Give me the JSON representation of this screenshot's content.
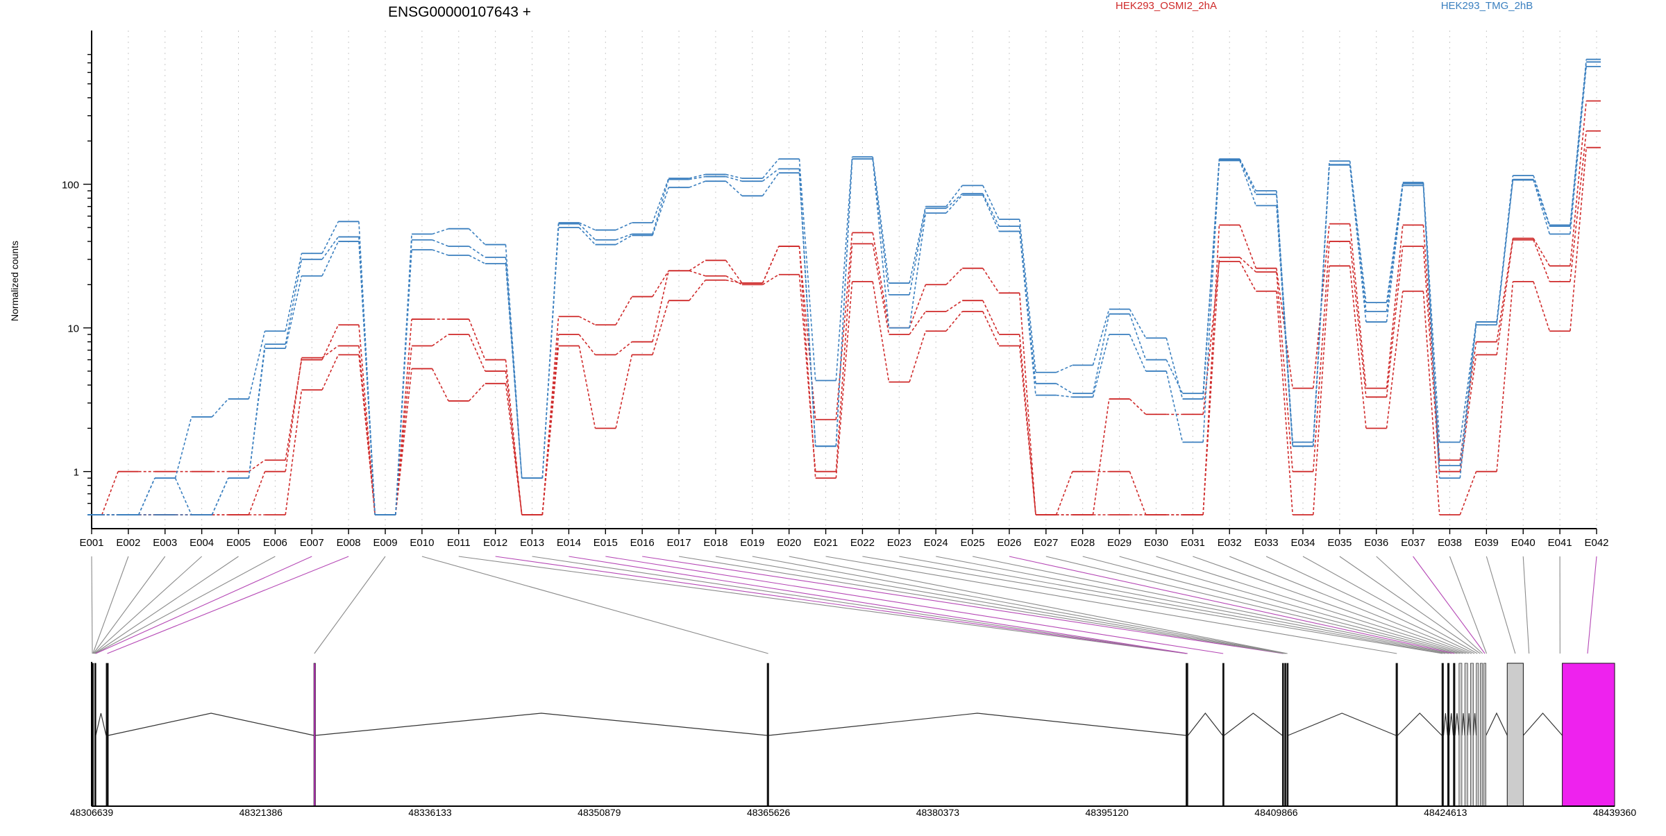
{
  "chart_data": {
    "type": "line",
    "title": "ENSG00000107643 +",
    "ylabel": "Normalized counts",
    "xlabel": "",
    "y_scale": "log",
    "ylim": [
      0.5,
      880
    ],
    "y_ticks": [
      {
        "value": 1,
        "label": "1"
      },
      {
        "value": 10,
        "label": "10"
      },
      {
        "value": 100,
        "label": "100"
      }
    ],
    "grid": "vertical dotted",
    "legend": [
      {
        "name": "HEK293_OSMI2_2hA",
        "color": "#cf2a2a"
      },
      {
        "name": "HEK293_TMG_2hB",
        "color": "#3a7fbf"
      }
    ],
    "categories": [
      "E001",
      "E002",
      "E003",
      "E004",
      "E005",
      "E006",
      "E007",
      "E008",
      "E009",
      "E010",
      "E011",
      "E012",
      "E013",
      "E014",
      "E015",
      "E016",
      "E017",
      "E018",
      "E019",
      "E020",
      "E021",
      "E022",
      "E023",
      "E024",
      "E025",
      "E026",
      "E027",
      "E028",
      "E029",
      "E030",
      "E031",
      "E032",
      "E033",
      "E034",
      "E035",
      "E036",
      "E037",
      "E038",
      "E039",
      "E040",
      "E041",
      "E042"
    ],
    "series": [
      {
        "group": "HEK293_OSMI2_2hA",
        "color": "#cf2a2a",
        "values": [
          0.5,
          1,
          1,
          1,
          1,
          1.2,
          6,
          10.5,
          0.5,
          11.5,
          11.5,
          6,
          0.5,
          12,
          10.5,
          16.5,
          25,
          29.5,
          20.5,
          37,
          2.3,
          46,
          10,
          20,
          26,
          17.5,
          0.5,
          0.5,
          0.5,
          0.5,
          0.5,
          52,
          26,
          3.8,
          53,
          3.8,
          52,
          1.2,
          8,
          42,
          27,
          380
        ]
      },
      {
        "group": "HEK293_OSMI2_2hA",
        "color": "#cf2a2a",
        "values": [
          0.5,
          0.5,
          0.5,
          0.5,
          0.5,
          1,
          6.2,
          7.5,
          0.5,
          7.5,
          9,
          5,
          0.5,
          9,
          6.5,
          8,
          25,
          23,
          20,
          23.5,
          1,
          38.5,
          9,
          13,
          15.5,
          9,
          0.5,
          1,
          1,
          0.5,
          0.5,
          31,
          24.5,
          1,
          40,
          3.3,
          37,
          1,
          6.5,
          41,
          21,
          235
        ]
      },
      {
        "group": "HEK293_OSMI2_2hA",
        "color": "#cf2a2a",
        "values": [
          0.5,
          0.5,
          0.5,
          0.5,
          0.5,
          0.5,
          3.7,
          6.5,
          0.5,
          5.2,
          3.1,
          4.1,
          0.5,
          7.5,
          2,
          6.5,
          15.5,
          21.5,
          20.5,
          37,
          0.9,
          21,
          4.2,
          9.5,
          13,
          7.5,
          0.5,
          0.5,
          3.2,
          2.5,
          2.5,
          29,
          18,
          0.5,
          27,
          2,
          18,
          0.5,
          1,
          21,
          9.5,
          180
        ]
      },
      {
        "group": "HEK293_TMG_2hB",
        "color": "#3a7fbf",
        "values": [
          0.5,
          0.5,
          0.9,
          2.4,
          3.2,
          9.5,
          33,
          55,
          0.5,
          45,
          49,
          38,
          0.9,
          54,
          48,
          54,
          110,
          117,
          110,
          150,
          4.3,
          155,
          20.5,
          70,
          98,
          57,
          4.9,
          5.5,
          13.5,
          8.5,
          3.2,
          150,
          90,
          1.6,
          145,
          15,
          103,
          1.6,
          11,
          115,
          52,
          740
        ]
      },
      {
        "group": "HEK293_TMG_2hB",
        "color": "#3a7fbf",
        "values": [
          0.5,
          0.5,
          0.5,
          0.5,
          0.9,
          7.7,
          30,
          43,
          0.5,
          41,
          37,
          31,
          0.9,
          53,
          41,
          45,
          108,
          113,
          105,
          128,
          1.5,
          150,
          17,
          68,
          86,
          51,
          4.1,
          3.5,
          12.5,
          6,
          3.5,
          148,
          85,
          1.5,
          137,
          13,
          101,
          1.1,
          11,
          108,
          51,
          710
        ]
      },
      {
        "group": "HEK293_TMG_2hB",
        "color": "#3a7fbf",
        "values": [
          0.5,
          0.5,
          0.9,
          0.5,
          0.9,
          7.2,
          23,
          40,
          0.5,
          35,
          32,
          28,
          0.9,
          50,
          38,
          44,
          95,
          105,
          83,
          120,
          1.5,
          150,
          10,
          63,
          84,
          47,
          3.4,
          3.3,
          9,
          5,
          1.6,
          146,
          71,
          1.5,
          136,
          11,
          98,
          0.9,
          10.5,
          107,
          45,
          660
        ]
      }
    ],
    "genome_ticks": [
      "48306639",
      "48321386",
      "48336133",
      "48350879",
      "48365626",
      "48380373",
      "48395120",
      "48409866",
      "48424613",
      "48439360"
    ],
    "genome_range": [
      48306639,
      48439360
    ],
    "gene_model": {
      "exons": [
        {
          "start": 48306639,
          "end": 48306800
        },
        {
          "start": 48306900,
          "end": 48307000
        },
        {
          "start": 48307900,
          "end": 48308100
        },
        {
          "start": 48326000,
          "end": 48326150
        },
        {
          "start": 48365500,
          "end": 48365650
        },
        {
          "start": 48402000,
          "end": 48402180
        },
        {
          "start": 48405200,
          "end": 48405330
        },
        {
          "start": 48410400,
          "end": 48410500
        },
        {
          "start": 48410600,
          "end": 48410700
        },
        {
          "start": 48410800,
          "end": 48410900
        },
        {
          "start": 48420300,
          "end": 48420450
        },
        {
          "start": 48424300,
          "end": 48424450
        },
        {
          "start": 48424800,
          "end": 48424950
        },
        {
          "start": 48425300,
          "end": 48425450
        },
        {
          "start": 48425800,
          "end": 48426050
        },
        {
          "start": 48426300,
          "end": 48426550
        },
        {
          "start": 48426800,
          "end": 48427050
        },
        {
          "start": 48427300,
          "end": 48427500
        },
        {
          "start": 48427650,
          "end": 48427850
        },
        {
          "start": 48427950,
          "end": 48428150
        },
        {
          "start": 48430000,
          "end": 48431400
        },
        {
          "start": 48434800,
          "end": 48439360
        }
      ],
      "exon_fill": [
        "#111111",
        "#111111",
        "#111111",
        "#bb33bb",
        "#111111",
        "#111111",
        "#111111",
        "#111111",
        "#111111",
        "#111111",
        "#111111",
        "#111111",
        "#111111",
        "#111111",
        "#cccccc",
        "#cccccc",
        "#cccccc",
        "#cccccc",
        "#cccccc",
        "#cccccc",
        "#cccccc",
        "#ee22ee"
      ],
      "map_targets": [
        48306700,
        48306750,
        48306800,
        48306850,
        48306900,
        48306950,
        48307000,
        48308000,
        48326050,
        48365600,
        48402000,
        48402050,
        48402100,
        48402150,
        48405250,
        48410450,
        48410550,
        48410650,
        48410750,
        48410850,
        48420380,
        48424350,
        48424600,
        48424900,
        48425150,
        48425400,
        48425650,
        48425900,
        48426150,
        48426400,
        48426650,
        48426900,
        48427150,
        48427400,
        48427650,
        48427850,
        48428050,
        48428200,
        48430700,
        48431900,
        48434600,
        48437000
      ],
      "map_highlight": [
        "E007",
        "E008",
        "E012",
        "E014",
        "E015",
        "E016",
        "E026",
        "E037",
        "E042"
      ]
    }
  }
}
